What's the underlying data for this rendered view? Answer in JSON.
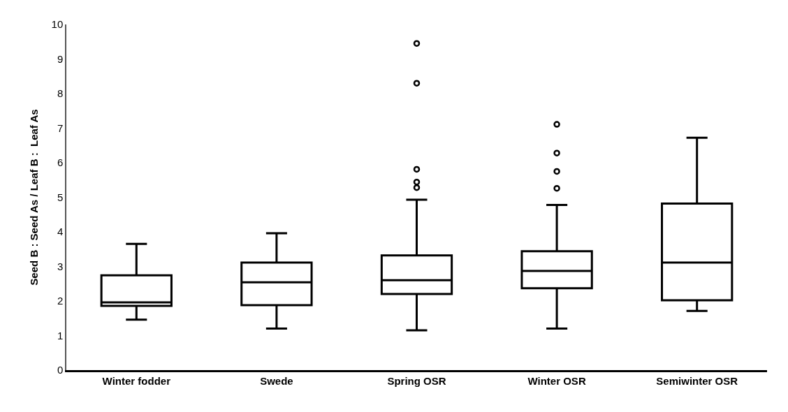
{
  "chart_data": {
    "type": "box",
    "ylabel": "Seed B : Seed As / Leaf B :  Leaf As",
    "categories": [
      "Winter fodder",
      "Swede",
      "Spring OSR",
      "Winter OSR",
      "Semiwinter OSR"
    ],
    "boxes": [
      {
        "low": 1.46,
        "q1": 1.86,
        "median": 1.96,
        "q3": 2.74,
        "high": 3.65
      },
      {
        "low": 1.2,
        "q1": 1.88,
        "median": 2.54,
        "q3": 3.11,
        "high": 3.96
      },
      {
        "low": 1.15,
        "q1": 2.2,
        "median": 2.6,
        "q3": 3.32,
        "high": 4.93,
        "outliers": [
          9.45,
          8.3,
          5.81,
          5.44,
          5.28
        ]
      },
      {
        "low": 1.2,
        "q1": 2.37,
        "median": 2.87,
        "q3": 3.44,
        "high": 4.78,
        "outliers": [
          7.11,
          6.28,
          5.75,
          5.26
        ]
      },
      {
        "low": 1.71,
        "q1": 2.02,
        "median": 3.11,
        "q3": 4.82,
        "high": 6.72
      }
    ],
    "color": "#000000",
    "marker": "circle",
    "ylim": [
      0,
      10
    ],
    "yticks": [
      0,
      1,
      2,
      3,
      4,
      5,
      6,
      7,
      8,
      9,
      10
    ]
  }
}
